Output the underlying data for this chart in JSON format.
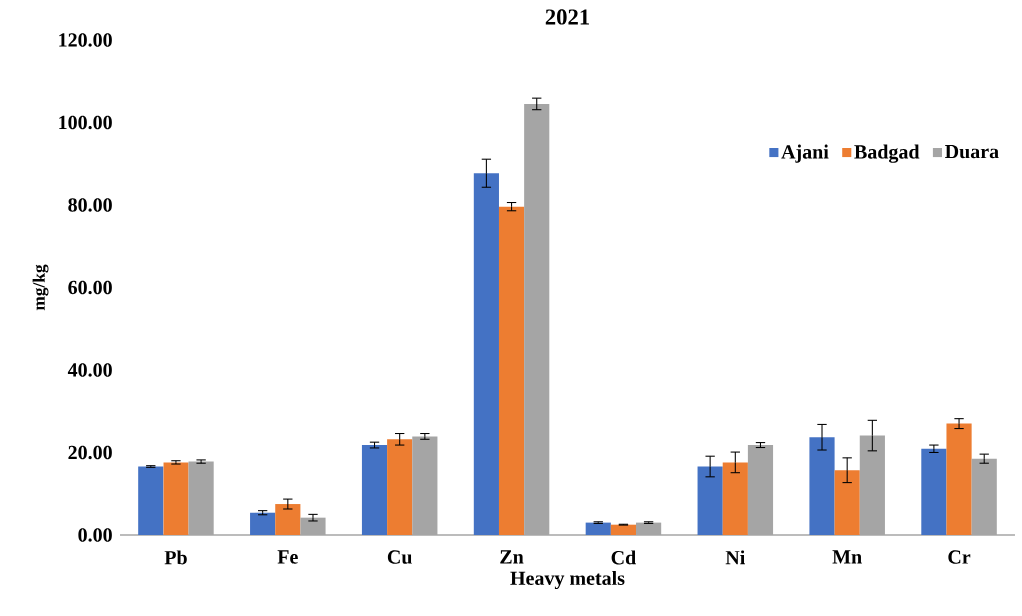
{
  "chart_data": {
    "type": "bar",
    "title": "2021",
    "xlabel": "Heavy metals",
    "ylabel": "mg/kg",
    "categories": [
      "Pb",
      "Fe",
      "Cu",
      "Zn",
      "Cd",
      "Ni",
      "Mn",
      "Cr"
    ],
    "series": [
      {
        "name": "Ajani",
        "color": "#4472c4",
        "values": [
          16.6,
          5.4,
          21.8,
          87.7,
          3.0,
          16.6,
          23.7,
          20.9
        ],
        "errors": [
          0.2,
          0.5,
          0.7,
          3.4,
          0.2,
          2.5,
          3.1,
          0.9
        ]
      },
      {
        "name": "Badgad",
        "color": "#ed7d31",
        "values": [
          17.6,
          7.5,
          23.2,
          79.6,
          2.5,
          17.6,
          15.7,
          27.0
        ],
        "errors": [
          0.4,
          1.2,
          1.4,
          1.0,
          0.1,
          2.5,
          3.0,
          1.2
        ]
      },
      {
        "name": "Duara",
        "color": "#a5a5a5",
        "values": [
          17.8,
          4.2,
          23.9,
          104.5,
          3.0,
          21.8,
          24.1,
          18.5
        ],
        "errors": [
          0.4,
          0.8,
          0.7,
          1.4,
          0.2,
          0.6,
          3.7,
          1.1
        ]
      }
    ],
    "ylim": [
      0,
      120
    ],
    "yticks": [
      {
        "value": 0,
        "label": "0.00"
      },
      {
        "value": 20,
        "label": "20.00"
      },
      {
        "value": 40,
        "label": "40.00"
      },
      {
        "value": 60,
        "label": "60.00"
      },
      {
        "value": 80,
        "label": "80.00"
      },
      {
        "value": 100,
        "label": "100.00"
      },
      {
        "value": 120,
        "label": "120.00"
      }
    ],
    "legend": "top right",
    "grid": false
  }
}
